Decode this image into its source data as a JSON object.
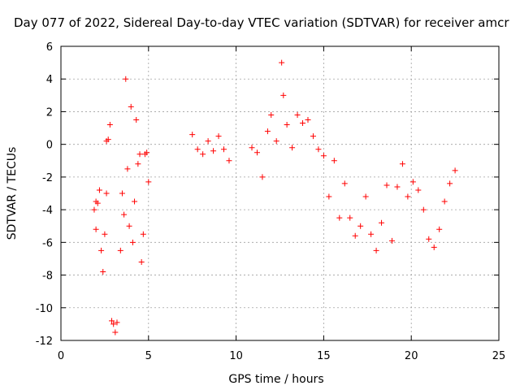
{
  "chart_data": {
    "type": "scatter",
    "title": "Day 077 of 2022, Sidereal Day-to-day VTEC variation (SDTVAR) for receiver amcr",
    "xlabel": "GPS time / hours",
    "ylabel": "SDTVAR / TECUs",
    "xlim": [
      0,
      25
    ],
    "ylim": [
      -12,
      6
    ],
    "xticks": [
      0,
      5,
      10,
      15,
      20,
      25
    ],
    "yticks": [
      -12,
      -10,
      -8,
      -6,
      -4,
      -2,
      0,
      2,
      4,
      6
    ],
    "xtick_labels": [
      "0",
      "5",
      "10",
      "15",
      "20",
      "25"
    ],
    "ytick_labels": [
      "-12",
      "-10",
      "-8",
      "-6",
      "-4",
      "-2",
      "0",
      "2",
      "4",
      "6"
    ],
    "grid": true,
    "marker": "plus",
    "series": [
      {
        "name": "SDTVAR",
        "color": "#ff0000",
        "x": [
          1.9,
          2.0,
          2.0,
          2.1,
          2.2,
          2.3,
          2.4,
          2.5,
          2.6,
          2.6,
          2.7,
          2.8,
          2.9,
          3.0,
          3.1,
          3.2,
          3.4,
          3.5,
          3.6,
          3.7,
          3.8,
          3.9,
          4.0,
          4.1,
          4.2,
          4.3,
          4.4,
          4.5,
          4.6,
          4.7,
          4.8,
          4.9,
          5.0,
          7.5,
          7.8,
          8.1,
          8.4,
          8.7,
          9.0,
          9.3,
          9.6,
          10.9,
          11.2,
          11.5,
          11.8,
          12.0,
          12.3,
          12.6,
          12.7,
          12.9,
          13.2,
          13.5,
          13.8,
          14.1,
          14.4,
          14.7,
          15.0,
          15.3,
          15.6,
          15.9,
          16.2,
          16.5,
          16.8,
          17.1,
          17.4,
          17.7,
          18.0,
          18.3,
          18.6,
          18.9,
          19.2,
          19.5,
          19.8,
          20.1,
          20.4,
          20.7,
          21.0,
          21.3,
          21.6,
          21.9,
          22.2,
          22.5
        ],
        "y": [
          -4.0,
          -3.5,
          -5.2,
          -3.6,
          -2.8,
          -6.5,
          -7.8,
          -5.5,
          0.2,
          -3.0,
          0.3,
          1.2,
          -10.8,
          -11.0,
          -11.5,
          -10.9,
          -6.5,
          -3.0,
          -4.3,
          4.0,
          -1.5,
          -5.0,
          2.3,
          -6.0,
          -3.5,
          1.5,
          -1.2,
          -0.6,
          -7.2,
          -5.5,
          -0.6,
          -0.5,
          -2.3,
          0.6,
          -0.3,
          -0.6,
          0.2,
          -0.4,
          0.5,
          -0.3,
          -1.0,
          -0.2,
          -0.5,
          -2.0,
          0.8,
          1.8,
          0.2,
          5.0,
          3.0,
          1.2,
          -0.2,
          1.8,
          1.3,
          1.5,
          0.5,
          -0.3,
          -0.7,
          -3.2,
          -1.0,
          -4.5,
          -2.4,
          -4.5,
          -5.6,
          -5.0,
          -3.2,
          -5.5,
          -6.5,
          -4.8,
          -2.5,
          -5.9,
          -2.6,
          -1.2,
          -3.2,
          -2.3,
          -2.8,
          -4.0,
          -5.8,
          -6.3,
          -5.2,
          -3.5,
          -2.4,
          -1.6
        ]
      }
    ]
  }
}
